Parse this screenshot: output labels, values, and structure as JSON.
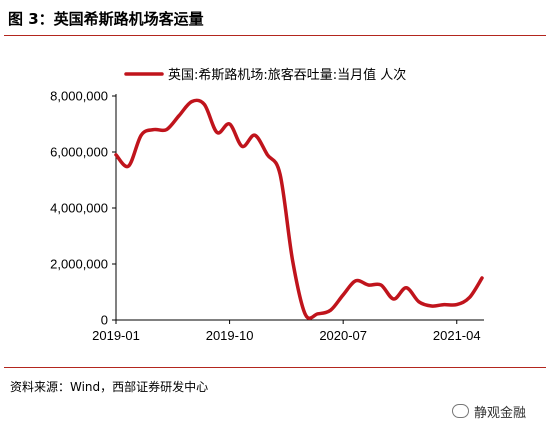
{
  "figure": {
    "title": "图 3：英国希斯路机场客运量",
    "source": "资料来源：Wind，西部证券研发中心",
    "watermark": "静观金融"
  },
  "chart_data": {
    "type": "line",
    "title": "",
    "xlabel": "",
    "ylabel": "",
    "series": [
      {
        "name": "英国:希斯路机场:旅客吞吐量:当月值 人次",
        "color": "#c0141c",
        "x": [
          "2019-01",
          "2019-02",
          "2019-03",
          "2019-04",
          "2019-05",
          "2019-06",
          "2019-07",
          "2019-08",
          "2019-09",
          "2019-10",
          "2019-11",
          "2019-12",
          "2020-01",
          "2020-02",
          "2020-03",
          "2020-04",
          "2020-05",
          "2020-06",
          "2020-07",
          "2020-08",
          "2020-09",
          "2020-10",
          "2020-11",
          "2020-12",
          "2021-01",
          "2021-02",
          "2021-03",
          "2021-04",
          "2021-05",
          "2021-06"
        ],
        "values": [
          5900000,
          5500000,
          6600000,
          6800000,
          6800000,
          7300000,
          7800000,
          7700000,
          6700000,
          7000000,
          6200000,
          6600000,
          5900000,
          5200000,
          2100000,
          200000,
          220000,
          350000,
          900000,
          1400000,
          1250000,
          1250000,
          750000,
          1150000,
          650000,
          500000,
          550000,
          550000,
          800000,
          1500000
        ]
      }
    ],
    "x_ticks": [
      "2019-01",
      "2019-10",
      "2020-07",
      "2021-04"
    ],
    "y_ticks": [
      "0",
      "2,000,000",
      "4,000,000",
      "6,000,000",
      "8,000,000"
    ],
    "y_tick_values": [
      0,
      2000000,
      4000000,
      6000000,
      8000000
    ],
    "ylim": [
      0,
      8000000
    ],
    "grid": false,
    "legend_position": "top"
  }
}
